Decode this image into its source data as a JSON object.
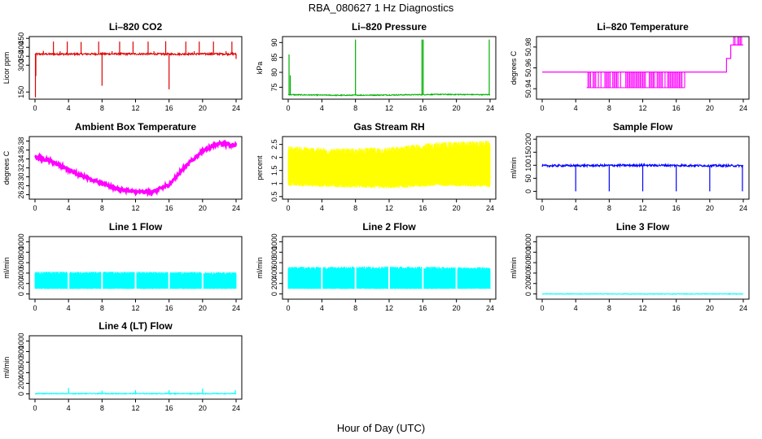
{
  "figure": {
    "title": "RBA_080627  1 Hz Diagnostics",
    "xlabel": "Hour of Day (UTC)"
  },
  "chart_data": [
    {
      "type": "line",
      "title": "Li–820 CO2",
      "ylabel": "Licor ppm",
      "color": "#e00000",
      "xlim": [
        0,
        24
      ],
      "xticks": [
        "0",
        "4",
        "8",
        "12",
        "16",
        "20",
        "24"
      ],
      "ylim": [
        110,
        460
      ],
      "yticks": [
        150,
        300,
        350,
        400,
        450
      ],
      "baseline": [
        [
          0,
          362
        ],
        [
          4,
          362
        ],
        [
          8,
          363
        ],
        [
          12,
          363
        ],
        [
          16,
          362
        ],
        [
          20,
          363
        ],
        [
          24,
          363
        ]
      ],
      "noise": 5,
      "events": [
        {
          "x": 0.05,
          "y": 120
        },
        {
          "x": 0.1,
          "y": 240
        },
        {
          "x": 2.2,
          "y": 432
        },
        {
          "x": 3.85,
          "y": 432
        },
        {
          "x": 5.5,
          "y": 430
        },
        {
          "x": 7.6,
          "y": 432
        },
        {
          "x": 10.1,
          "y": 432
        },
        {
          "x": 11.7,
          "y": 432
        },
        {
          "x": 13.5,
          "y": 432
        },
        {
          "x": 15.6,
          "y": 434
        },
        {
          "x": 18.0,
          "y": 432
        },
        {
          "x": 19.6,
          "y": 432
        },
        {
          "x": 21.3,
          "y": 432
        },
        {
          "x": 23.5,
          "y": 432
        },
        {
          "x": 8.0,
          "y": 185
        },
        {
          "x": 16.0,
          "y": 165
        },
        {
          "x": 24.0,
          "y": 335
        },
        {
          "x": 1.0,
          "y": 380
        },
        {
          "x": 3.0,
          "y": 378
        },
        {
          "x": 9.2,
          "y": 378
        },
        {
          "x": 14.2,
          "y": 378
        },
        {
          "x": 19.0,
          "y": 378
        },
        {
          "x": 22.8,
          "y": 378
        }
      ]
    },
    {
      "type": "line",
      "title": "Li–820 Pressure",
      "ylabel": "kPa",
      "color": "#00b000",
      "xlim": [
        0,
        24
      ],
      "xticks": [
        "0",
        "4",
        "8",
        "12",
        "16",
        "20",
        "24"
      ],
      "ylim": [
        71,
        92
      ],
      "yticks": [
        75,
        80,
        85,
        90
      ],
      "baseline": [
        [
          0,
          72.5
        ],
        [
          6,
          72.3
        ],
        [
          12,
          72.4
        ],
        [
          18,
          72.6
        ],
        [
          24,
          72.5
        ]
      ],
      "noise": 0.15,
      "events": [
        {
          "x": 0.1,
          "y": 86
        },
        {
          "x": 0.25,
          "y": 79
        },
        {
          "x": 8.0,
          "y": 91
        },
        {
          "x": 15.9,
          "y": 91
        },
        {
          "x": 16.05,
          "y": 91
        },
        {
          "x": 23.9,
          "y": 91
        }
      ]
    },
    {
      "type": "step",
      "title": "Li–820 Temperature",
      "ylabel": "degrees C",
      "color": "#ff00ff",
      "xlim": [
        0,
        24
      ],
      "xticks": [
        "0",
        "4",
        "8",
        "12",
        "16",
        "20",
        "24"
      ],
      "ylim": [
        50.93,
        50.99
      ],
      "yticks": [
        50.94,
        50.96,
        50.98
      ],
      "levels": [
        {
          "x0": 0,
          "x1": 22.0,
          "y": 50.956
        },
        {
          "x0": 22.0,
          "x1": 22.5,
          "y": 50.969
        },
        {
          "x0": 22.5,
          "x1": 24,
          "y": 50.982
        }
      ],
      "toggle_band": {
        "x0": 5.3,
        "x1": 17.0,
        "ylow": 50.941,
        "yhigh": 50.956
      },
      "toggle_band_2": {
        "x0": 22.7,
        "x1": 23.8,
        "ylow": 50.982,
        "yhigh": 50.995
      }
    },
    {
      "type": "line",
      "title": "Ambient Box Temperature",
      "ylabel": "degrees C",
      "color": "#ff00ff",
      "xlim": [
        0,
        24
      ],
      "xticks": [
        "0",
        "4",
        "8",
        "12",
        "16",
        "20",
        "24"
      ],
      "ylim": [
        25,
        39
      ],
      "yticks": [
        26,
        28,
        30,
        32,
        34,
        36,
        38
      ],
      "baseline": [
        [
          0,
          34.5
        ],
        [
          2,
          33.5
        ],
        [
          4,
          31.5
        ],
        [
          6,
          30
        ],
        [
          8,
          28.5
        ],
        [
          10,
          27.3
        ],
        [
          12,
          26.6
        ],
        [
          14,
          26.6
        ],
        [
          16,
          28.2
        ],
        [
          18,
          32.5
        ],
        [
          20,
          35.8
        ],
        [
          22,
          37.5
        ],
        [
          24,
          37.0
        ]
      ],
      "noise": 0.35
    },
    {
      "type": "band",
      "title": "Gas Stream RH",
      "ylabel": "percent",
      "color": "#ffff00",
      "xlim": [
        0,
        24
      ],
      "xticks": [
        "0",
        "4",
        "8",
        "12",
        "16",
        "20",
        "24"
      ],
      "ylim": [
        0.4,
        2.8
      ],
      "yticks": [
        0.5,
        1.0,
        1.5,
        2.0,
        2.5
      ],
      "upper": [
        [
          0,
          2.4
        ],
        [
          6,
          2.3
        ],
        [
          12,
          2.35
        ],
        [
          18,
          2.55
        ],
        [
          24,
          2.6
        ]
      ],
      "lower": [
        [
          0,
          0.95
        ],
        [
          6,
          0.9
        ],
        [
          12,
          0.85
        ],
        [
          18,
          0.95
        ],
        [
          24,
          0.9
        ]
      ]
    },
    {
      "type": "line",
      "title": "Sample Flow",
      "ylabel": "ml/min",
      "color": "#0000ff",
      "xlim": [
        0,
        24
      ],
      "xticks": [
        "0",
        "4",
        "8",
        "12",
        "16",
        "20",
        "24"
      ],
      "ylim": [
        -30,
        210
      ],
      "yticks": [
        0,
        50,
        100,
        150,
        200
      ],
      "baseline": [
        [
          0,
          98
        ],
        [
          12,
          100
        ],
        [
          24,
          98
        ]
      ],
      "noise": 4,
      "events": [
        {
          "x": 4.0,
          "y": 0
        },
        {
          "x": 8.0,
          "y": 0
        },
        {
          "x": 12.0,
          "y": 0
        },
        {
          "x": 16.0,
          "y": 0
        },
        {
          "x": 20.0,
          "y": 0
        },
        {
          "x": 23.9,
          "y": 0
        }
      ]
    },
    {
      "type": "band",
      "title": "Line 1 Flow",
      "ylabel": "ml/min",
      "color": "#00ffff",
      "xlim": [
        0,
        24
      ],
      "xticks": [
        "0",
        "4",
        "8",
        "12",
        "16",
        "20",
        "24"
      ],
      "ylim": [
        -100,
        1100
      ],
      "yticks": [
        0,
        200,
        400,
        600,
        800,
        1000
      ],
      "upper": [
        [
          0,
          420
        ],
        [
          12,
          420
        ],
        [
          24,
          410
        ]
      ],
      "lower": [
        [
          0,
          100
        ],
        [
          12,
          100
        ],
        [
          24,
          100
        ]
      ],
      "gaps": [
        4.0,
        8.0,
        12.0,
        16.0,
        20.0
      ]
    },
    {
      "type": "band",
      "title": "Line 2 Flow",
      "ylabel": "ml/min",
      "color": "#00ffff",
      "xlim": [
        0,
        24
      ],
      "xticks": [
        "0",
        "4",
        "8",
        "12",
        "16",
        "20",
        "24"
      ],
      "ylim": [
        -100,
        1100
      ],
      "yticks": [
        0,
        200,
        400,
        600,
        800,
        1000
      ],
      "upper": [
        [
          0,
          510
        ],
        [
          12,
          520
        ],
        [
          24,
          500
        ]
      ],
      "lower": [
        [
          0,
          100
        ],
        [
          12,
          100
        ],
        [
          24,
          100
        ]
      ],
      "gaps": [
        4.0,
        8.0,
        12.0,
        16.0,
        20.0
      ]
    },
    {
      "type": "line",
      "title": "Line 3 Flow",
      "ylabel": "ml/min",
      "color": "#00ffff",
      "xlim": [
        0,
        24
      ],
      "xticks": [
        "0",
        "4",
        "8",
        "12",
        "16",
        "20",
        "24"
      ],
      "ylim": [
        -100,
        1100
      ],
      "yticks": [
        0,
        200,
        400,
        600,
        800,
        1000
      ],
      "baseline": [
        [
          0,
          0
        ],
        [
          24,
          0
        ]
      ],
      "noise": 6
    },
    {
      "type": "line",
      "title": "Line 4 (LT) Flow",
      "ylabel": "ml/min",
      "color": "#00ffff",
      "xlim": [
        0,
        24
      ],
      "xticks": [
        "0",
        "4",
        "8",
        "12",
        "16",
        "20",
        "24"
      ],
      "ylim": [
        -100,
        1100
      ],
      "yticks": [
        0,
        200,
        400,
        600,
        800,
        1000
      ],
      "baseline": [
        [
          0,
          5
        ],
        [
          24,
          5
        ]
      ],
      "noise": 8,
      "events": [
        {
          "x": 4.0,
          "y": 110
        },
        {
          "x": 8.0,
          "y": 60
        },
        {
          "x": 12.0,
          "y": 70
        },
        {
          "x": 16.0,
          "y": 70
        },
        {
          "x": 20.0,
          "y": 100
        },
        {
          "x": 23.9,
          "y": 70
        }
      ]
    }
  ]
}
